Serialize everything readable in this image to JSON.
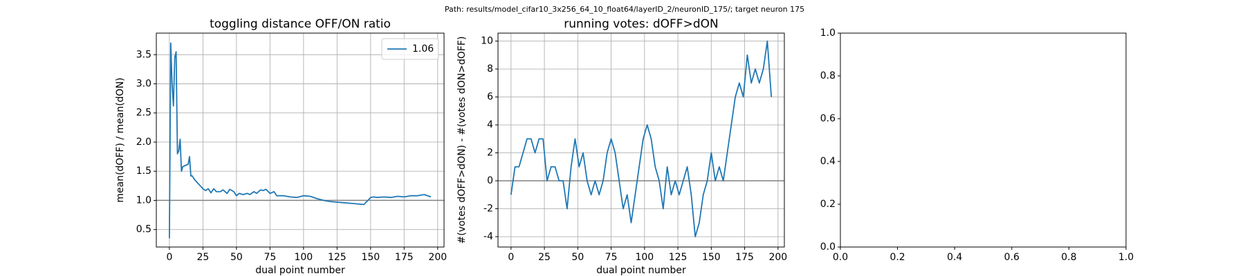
{
  "suptitle": "Path: results/model_cifar10_3x256_64_10_float64/layerID_2/neuronID_175/; target neuron 175",
  "chart_data": [
    {
      "type": "line",
      "title": "toggling distance OFF/ON ratio",
      "xlabel": "dual point number",
      "ylabel": "mean(dOFF) / mean(dON)",
      "x": [
        0,
        1,
        2,
        3,
        4,
        5,
        6,
        7,
        8,
        9,
        10,
        12,
        14,
        15,
        16,
        17,
        19,
        21,
        23,
        25,
        27,
        29,
        31,
        33,
        35,
        38,
        40,
        43,
        45,
        48,
        50,
        52,
        55,
        58,
        60,
        63,
        65,
        68,
        70,
        72,
        75,
        78,
        80,
        85,
        90,
        95,
        100,
        105,
        110,
        115,
        120,
        125,
        130,
        135,
        140,
        145,
        148,
        150,
        152,
        155,
        160,
        165,
        170,
        175,
        180,
        185,
        190,
        195
      ],
      "series": [
        {
          "name": "1.06",
          "color": "#1f77b4",
          "values": [
            0.35,
            3.7,
            3.0,
            2.62,
            3.45,
            3.55,
            1.8,
            1.85,
            2.05,
            1.5,
            1.58,
            1.6,
            1.62,
            1.75,
            1.42,
            1.42,
            1.35,
            1.3,
            1.25,
            1.2,
            1.17,
            1.2,
            1.13,
            1.2,
            1.15,
            1.15,
            1.18,
            1.12,
            1.19,
            1.15,
            1.08,
            1.12,
            1.1,
            1.12,
            1.1,
            1.15,
            1.12,
            1.18,
            1.17,
            1.19,
            1.12,
            1.15,
            1.08,
            1.08,
            1.06,
            1.05,
            1.08,
            1.07,
            1.03,
            1.0,
            0.98,
            0.97,
            0.96,
            0.95,
            0.94,
            0.93,
            1.0,
            1.05,
            1.06,
            1.05,
            1.06,
            1.05,
            1.07,
            1.06,
            1.08,
            1.08,
            1.1,
            1.06
          ]
        }
      ],
      "hline": 1,
      "hline_color": "#808080",
      "xlim": [
        -9.75,
        204.75
      ],
      "xticks": [
        0,
        25,
        50,
        75,
        100,
        125,
        150,
        175,
        200
      ],
      "ylim": [
        0.2,
        3.87
      ],
      "yticks": [
        0.5,
        {
          "value": 1,
          "label": "1.0"
        },
        1.5,
        {
          "value": 2,
          "label": "2.0"
        },
        2.5,
        {
          "value": 3,
          "label": "3.0"
        },
        3.5
      ],
      "grid": true,
      "legend": "upper right"
    },
    {
      "type": "line",
      "title": "running votes: dOFF>dON",
      "xlabel": "dual point number",
      "ylabel": "#(votes dOFF>dON) - #(votes dON>dOFF)",
      "x": [
        0,
        3,
        6,
        9,
        12,
        15,
        18,
        21,
        24,
        27,
        30,
        33,
        36,
        39,
        42,
        45,
        48,
        51,
        54,
        57,
        60,
        63,
        66,
        69,
        72,
        75,
        78,
        81,
        84,
        87,
        90,
        93,
        96,
        99,
        102,
        105,
        108,
        111,
        114,
        117,
        120,
        123,
        126,
        129,
        132,
        135,
        138,
        141,
        144,
        147,
        150,
        153,
        156,
        159,
        162,
        165,
        168,
        171,
        174,
        177,
        180,
        183,
        186,
        189,
        192,
        195
      ],
      "series": [
        {
          "color": "#1f77b4",
          "values": [
            -1,
            1,
            1,
            2,
            3,
            3,
            2,
            3,
            3,
            0,
            1,
            1,
            0,
            0,
            -2,
            1,
            3,
            1,
            2,
            0,
            -1,
            0,
            -1,
            0,
            2,
            3,
            2,
            0,
            -2,
            -1,
            -3,
            -1,
            1,
            3,
            4,
            3,
            1,
            0,
            -2,
            1,
            -1,
            0,
            -1,
            0,
            1,
            -1,
            -4,
            -3,
            -1,
            0,
            2,
            0,
            1,
            0,
            2,
            4,
            6,
            7,
            6,
            9,
            7,
            8,
            7,
            8,
            10,
            6
          ]
        }
      ],
      "hline": 0,
      "hline_color": "#808080",
      "xlim": [
        -9.75,
        204.75
      ],
      "xticks": [
        0,
        25,
        50,
        75,
        100,
        125,
        150,
        175,
        200
      ],
      "ylim": [
        -4.74,
        10.57
      ],
      "yticks": [
        -4,
        -2,
        0,
        2,
        4,
        6,
        8,
        10
      ],
      "grid": true
    },
    {
      "type": "empty",
      "xlim": [
        0,
        1
      ],
      "xticks": [
        {
          "value": 0,
          "label": "0.0"
        },
        0.2,
        0.4,
        0.6,
        0.8,
        {
          "value": 1,
          "label": "1.0"
        }
      ],
      "ylim": [
        0,
        1
      ],
      "yticks": [
        {
          "value": 0,
          "label": "0.0"
        },
        0.2,
        0.4,
        0.6,
        0.8,
        {
          "value": 1,
          "label": "1.0"
        }
      ],
      "grid": false
    }
  ]
}
